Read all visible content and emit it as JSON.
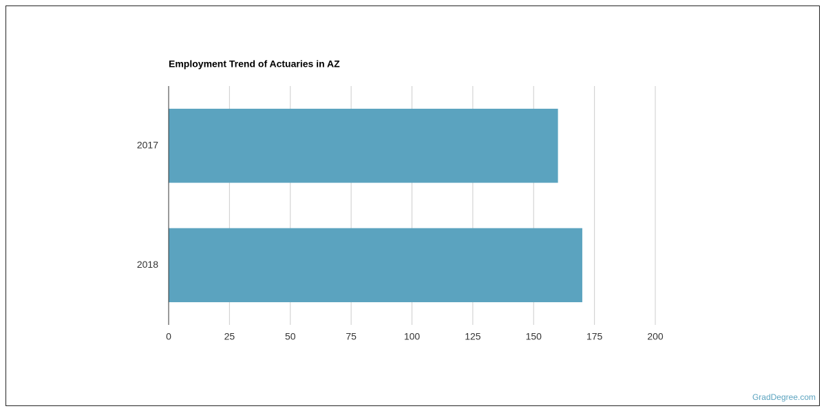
{
  "chart_data": {
    "type": "hbar",
    "title": "Employment Trend of Actuaries in AZ",
    "categories": [
      "2017",
      "2018"
    ],
    "values": [
      160,
      170
    ],
    "color": "#5ba3bf",
    "xlim": [
      0,
      200
    ],
    "xticks": [
      0,
      25,
      50,
      75,
      100,
      125,
      150,
      175,
      200
    ],
    "grid": true
  },
  "watermark": "GradDegree.com"
}
